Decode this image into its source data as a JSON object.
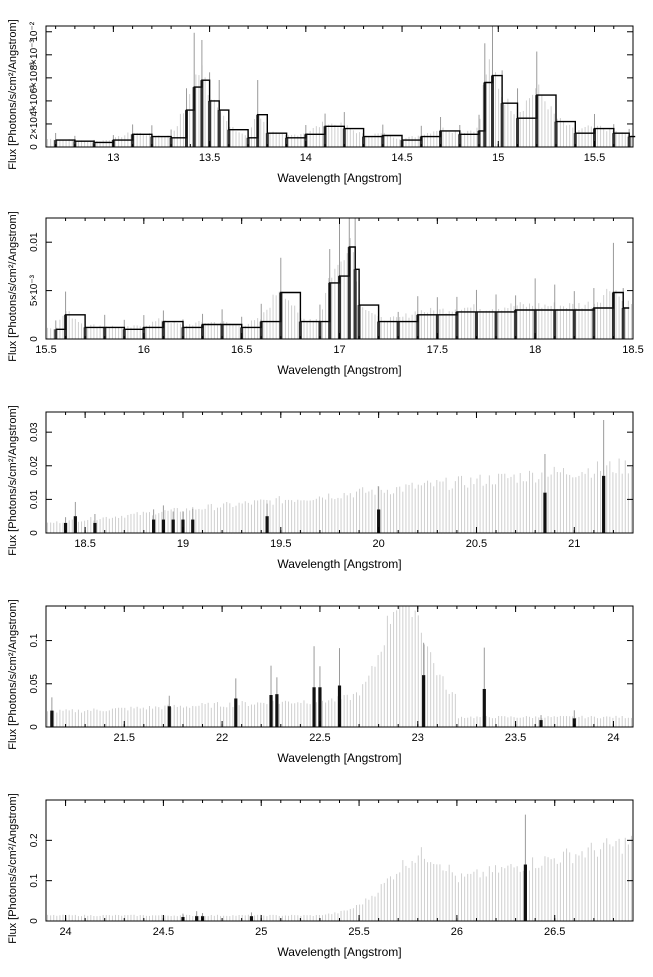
{
  "chart_data": [
    {
      "type": "line",
      "xlabel": "Wavelength [Angstrom]",
      "ylabel": "Flux [Photons/s/cm²/Angstrom]",
      "xlim": [
        12.65,
        15.7
      ],
      "ylim": [
        0,
        0.0105
      ],
      "xticks": [
        "13",
        "13.5",
        "14",
        "14.5",
        "15",
        "15.5"
      ],
      "yticks": [
        "0",
        "2×10⁻³",
        "4×10⁻³",
        "6×10⁻³",
        "8×10⁻³",
        "10⁻²"
      ],
      "ytick_values": [
        0,
        0.002,
        0.004,
        0.006,
        0.008,
        0.01
      ],
      "yexp": "−3",
      "data": {
        "x": [
          12.7,
          12.8,
          12.9,
          13.0,
          13.1,
          13.2,
          13.3,
          13.38,
          13.42,
          13.46,
          13.5,
          13.55,
          13.6,
          13.7,
          13.75,
          13.8,
          13.9,
          14.0,
          14.1,
          14.2,
          14.3,
          14.4,
          14.5,
          14.6,
          14.7,
          14.8,
          14.9,
          14.93,
          14.97,
          15.02,
          15.1,
          15.2,
          15.3,
          15.4,
          15.5,
          15.6,
          15.68
        ],
        "y": [
          0.0006,
          0.0005,
          0.0004,
          0.0006,
          0.0011,
          0.0009,
          0.0008,
          0.0032,
          0.0052,
          0.0058,
          0.004,
          0.0032,
          0.0015,
          0.0008,
          0.0028,
          0.0012,
          0.0008,
          0.0011,
          0.0018,
          0.0016,
          0.0009,
          0.001,
          0.0006,
          0.0009,
          0.0014,
          0.0011,
          0.0014,
          0.0056,
          0.0062,
          0.0038,
          0.0025,
          0.0045,
          0.0022,
          0.0012,
          0.0016,
          0.0012,
          0.0009
        ]
      }
    },
    {
      "type": "line",
      "xlabel": "Wavelength [Angstrom]",
      "ylabel": "Flux [Photons/s/cm²/Angstrom]",
      "xlim": [
        15.5,
        18.5
      ],
      "ylim": [
        0,
        0.0125
      ],
      "xticks": [
        "15.5",
        "16",
        "16.5",
        "17",
        "17.5",
        "18",
        "18.5"
      ],
      "yticks": [
        "0",
        "5×10⁻³",
        "0.01"
      ],
      "ytick_values": [
        0,
        0.005,
        0.01
      ],
      "yexp": "−3",
      "data": {
        "x": [
          15.55,
          15.6,
          15.7,
          15.8,
          15.9,
          16.0,
          16.1,
          16.2,
          16.3,
          16.4,
          16.5,
          16.6,
          16.7,
          16.8,
          16.9,
          16.95,
          17.0,
          17.05,
          17.08,
          17.1,
          17.2,
          17.3,
          17.4,
          17.5,
          17.6,
          17.7,
          17.8,
          17.9,
          18.0,
          18.1,
          18.2,
          18.3,
          18.4,
          18.45
        ],
        "y": [
          0.001,
          0.0025,
          0.0012,
          0.0012,
          0.001,
          0.0012,
          0.0018,
          0.0012,
          0.0015,
          0.0015,
          0.0012,
          0.0018,
          0.0048,
          0.0018,
          0.0018,
          0.0058,
          0.0065,
          0.0095,
          0.0072,
          0.0035,
          0.0018,
          0.0018,
          0.0025,
          0.0025,
          0.0028,
          0.0028,
          0.0028,
          0.003,
          0.003,
          0.003,
          0.003,
          0.0032,
          0.0048,
          0.0032
        ]
      }
    },
    {
      "type": "bar",
      "xlabel": "Wavelength [Angstrom]",
      "ylabel": "Flux [Photons/s/cm²/Angstrom]",
      "xlim": [
        18.3,
        21.3
      ],
      "ylim": [
        0,
        0.036
      ],
      "xticks": [
        "18.5",
        "19",
        "19.5",
        "20",
        "20.5",
        "21"
      ],
      "yticks": [
        "0",
        "0.01",
        "0.02",
        "0.03"
      ],
      "ytick_values": [
        0,
        0.01,
        0.02,
        0.03
      ],
      "data": {
        "x": [
          18.4,
          18.45,
          18.55,
          18.85,
          18.9,
          18.95,
          19.0,
          19.05,
          19.43,
          20.0,
          20.85,
          21.15
        ],
        "y": [
          0.003,
          0.005,
          0.003,
          0.004,
          0.004,
          0.004,
          0.004,
          0.004,
          0.005,
          0.007,
          0.012,
          0.017
        ]
      }
    },
    {
      "type": "bar",
      "xlabel": "Wavelength [Angstrom]",
      "ylabel": "Flux [Photons/s/cm²/Angstrom]",
      "xlim": [
        21.1,
        24.1
      ],
      "ylim": [
        0,
        0.14
      ],
      "xticks": [
        "21.5",
        "22",
        "22.5",
        "23",
        "23.5",
        "24"
      ],
      "yticks": [
        "0",
        "0.05",
        "0.1"
      ],
      "ytick_values": [
        0,
        0.05,
        0.1
      ],
      "data": {
        "x": [
          21.13,
          21.73,
          22.07,
          22.25,
          22.28,
          22.47,
          22.5,
          22.6,
          23.03,
          23.34,
          23.63,
          23.8
        ],
        "y": [
          0.019,
          0.024,
          0.033,
          0.037,
          0.038,
          0.046,
          0.046,
          0.048,
          0.06,
          0.044,
          0.008,
          0.01
        ]
      }
    },
    {
      "type": "bar",
      "xlabel": "Wavelength [Angstrom]",
      "ylabel": "Flux [Photons/s/cm²/Angstrom]",
      "xlim": [
        23.9,
        26.9
      ],
      "ylim": [
        0,
        0.3
      ],
      "xticks": [
        "24",
        "24.5",
        "25",
        "25.5",
        "26",
        "26.5"
      ],
      "yticks": [
        "0",
        "0.1",
        "0.2"
      ],
      "ytick_values": [
        0,
        0.1,
        0.2
      ],
      "data": {
        "x": [
          24.6,
          24.67,
          24.7,
          24.95,
          26.35
        ],
        "y": [
          0.01,
          0.012,
          0.012,
          0.012,
          0.14
        ]
      }
    }
  ]
}
